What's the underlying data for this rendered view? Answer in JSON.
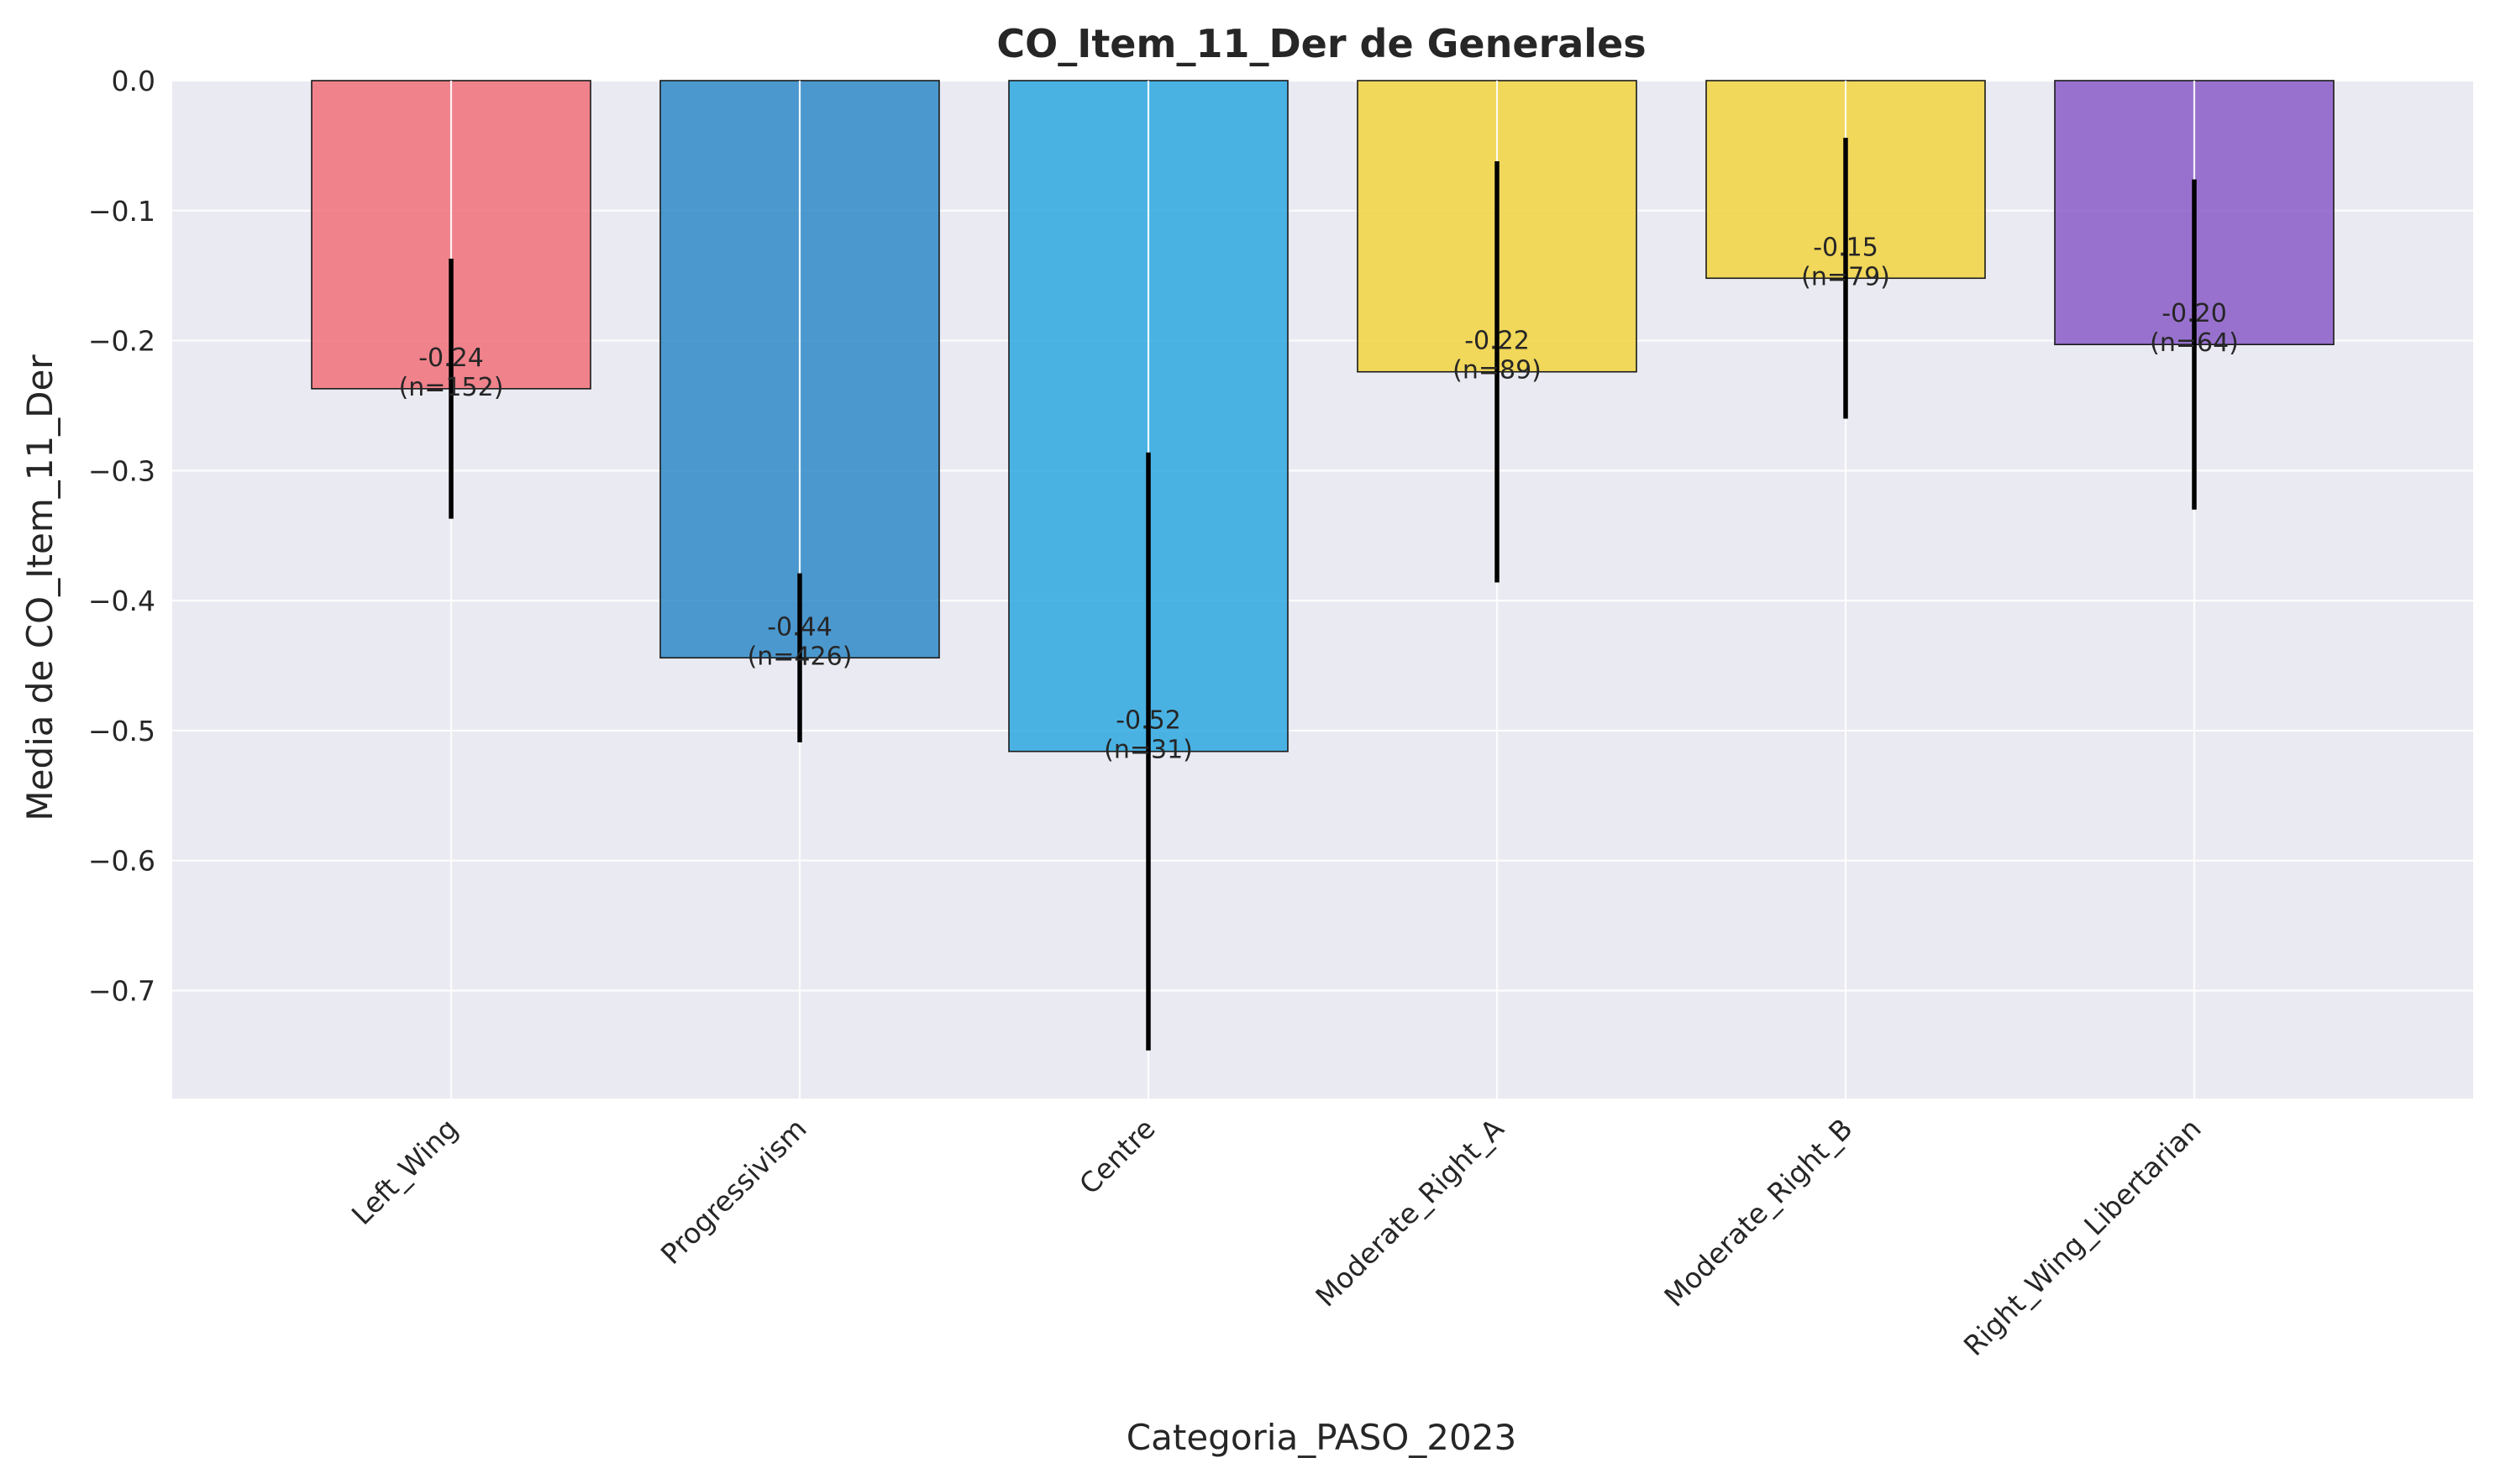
{
  "chart_data": {
    "type": "bar",
    "title": "CO_Item_11_Der de Generales",
    "xlabel": "Categoria_PASO_2023",
    "ylabel": "Media de CO_Item_11_Der",
    "categories": [
      "Left_Wing",
      "Progressivism",
      "Centre",
      "Moderate_Right_A",
      "Moderate_Right_B",
      "Right_Wing_Libertarian"
    ],
    "values": [
      -0.237,
      -0.444,
      -0.516,
      -0.224,
      -0.152,
      -0.203
    ],
    "error_low": [
      -0.337,
      -0.509,
      -0.746,
      -0.386,
      -0.26,
      -0.33
    ],
    "error_high": [
      -0.137,
      -0.379,
      -0.286,
      -0.062,
      -0.044,
      -0.076
    ],
    "bar_labels": [
      [
        "-0.24",
        "(n=152)"
      ],
      [
        "-0.44",
        "(n=426)"
      ],
      [
        "-0.52",
        "(n=31)"
      ],
      [
        "-0.22",
        "(n=89)"
      ],
      [
        "-0.15",
        "(n=79)"
      ],
      [
        "-0.20",
        "(n=64)"
      ]
    ],
    "colors": [
      "#F07079",
      "#2F89C8",
      "#2DA8E0",
      "#F2D440",
      "#F2D440",
      "#8A5CC8"
    ],
    "yticks": [
      0.0,
      -0.1,
      -0.2,
      -0.3,
      -0.4,
      -0.5,
      -0.6,
      -0.7
    ],
    "ytick_labels": [
      "0.0",
      "−0.1",
      "−0.2",
      "−0.3",
      "−0.4",
      "−0.5",
      "−0.6",
      "−0.7"
    ],
    "ylim": [
      -0.783,
      0.0
    ],
    "grid": true,
    "background": "#EAEAF2",
    "error_color": "#000000"
  }
}
